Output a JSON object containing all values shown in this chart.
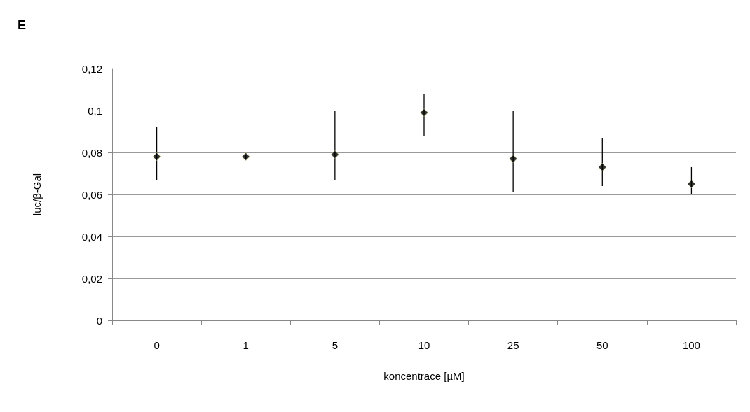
{
  "chart_data": {
    "type": "scatter",
    "title": "E",
    "xlabel": "koncentrace [µM]",
    "ylabel": "luc/β-Gal",
    "categories": [
      "0",
      "1",
      "5",
      "10",
      "25",
      "50",
      "100"
    ],
    "series": [
      {
        "color": "#000000",
        "values": [
          0.078,
          0.078,
          0.079,
          0.099,
          0.077,
          0.073,
          0.065
        ],
        "errors": [
          [
            0.067,
            0.092
          ],
          [
            0.077,
            0.079
          ],
          [
            0.067,
            0.1
          ],
          [
            0.088,
            0.108
          ],
          [
            0.061,
            0.1
          ],
          [
            0.064,
            0.087
          ],
          [
            0.06,
            0.073
          ]
        ]
      }
    ],
    "ylim": [
      0,
      0.12
    ],
    "yticks": [
      {
        "value": 0,
        "label": "0"
      },
      {
        "value": 0.02,
        "label": "0,02"
      },
      {
        "value": 0.04,
        "label": "0,04"
      },
      {
        "value": 0.06,
        "label": "0,06"
      },
      {
        "value": 0.08,
        "label": "0,08"
      },
      {
        "value": 0.1,
        "label": "0,1"
      },
      {
        "value": 0.12,
        "label": "0,12"
      }
    ],
    "grid": "y",
    "marker": "diamond"
  }
}
